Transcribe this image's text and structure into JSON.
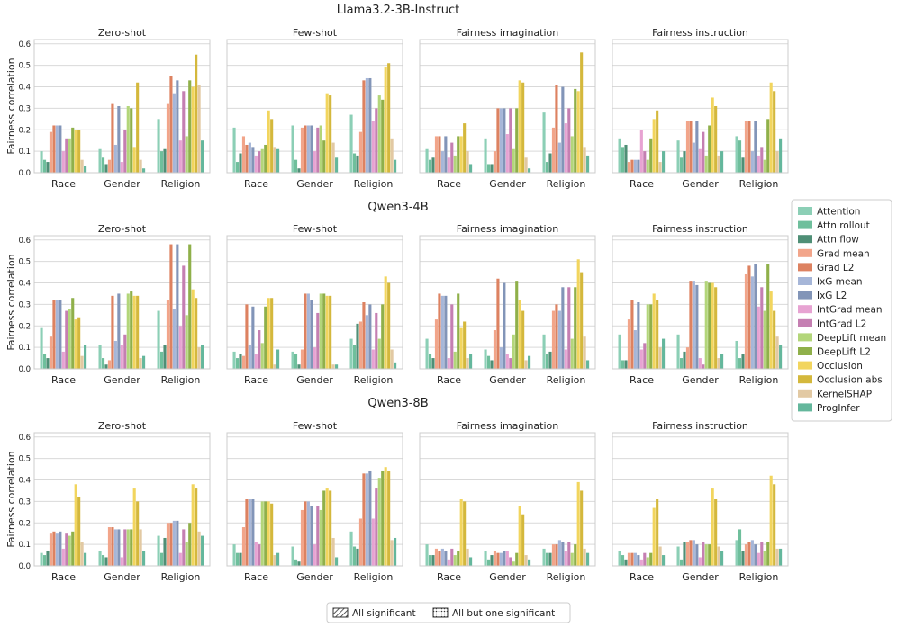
{
  "methods": [
    {
      "name": "Attention",
      "color": "#8ccfb6"
    },
    {
      "name": "Attn rollout",
      "color": "#6fbf9c"
    },
    {
      "name": "Attn flow",
      "color": "#4f8f76"
    },
    {
      "name": "Grad mean",
      "color": "#f2a58a"
    },
    {
      "name": "Grad L2",
      "color": "#dd8261"
    },
    {
      "name": "IxG mean",
      "color": "#a6b6d8"
    },
    {
      "name": "IxG L2",
      "color": "#8295b8"
    },
    {
      "name": "IntGrad mean",
      "color": "#e7a3d2"
    },
    {
      "name": "IntGrad L2",
      "color": "#c57fb2"
    },
    {
      "name": "DeepLift mean",
      "color": "#b3d67a"
    },
    {
      "name": "DeepLift L2",
      "color": "#8fb04a"
    },
    {
      "name": "Occlusion",
      "color": "#f2d55e"
    },
    {
      "name": "Occlusion abs",
      "color": "#d4b83c"
    },
    {
      "name": "KernelSHAP",
      "color": "#e2c9a3"
    },
    {
      "name": "ProgInfer",
      "color": "#64b79c"
    }
  ],
  "legend_patterns": [
    {
      "label": "All significant",
      "pattern": "diagonal-hatch"
    },
    {
      "label": "All but one significant",
      "pattern": "dots"
    }
  ],
  "chart_data": {
    "type": "bar",
    "ylabel": "Fairness correlation",
    "ylim": [
      0,
      0.62
    ],
    "yticks": [
      0.0,
      0.1,
      0.2,
      0.3,
      0.4,
      0.5,
      0.6
    ],
    "categories": [
      "Race",
      "Gender",
      "Religion"
    ],
    "grid": true,
    "legend_position": "right",
    "models": [
      {
        "name": "Llama3.2-3B-Instruct",
        "panels": [
          {
            "title": "Zero-shot",
            "values": [
              [
                0.1,
                0.06,
                0.05,
                0.19,
                0.22,
                0.22,
                0.22,
                0.1,
                0.16,
                0.16,
                0.21,
                0.2,
                0.2,
                0.06,
                0.03
              ],
              [
                0.11,
                0.07,
                0.04,
                0.06,
                0.32,
                0.13,
                0.31,
                0.05,
                0.2,
                0.31,
                0.3,
                0.12,
                0.42,
                0.06,
                0.02
              ],
              [
                0.25,
                0.1,
                0.11,
                0.32,
                0.45,
                0.37,
                0.43,
                0.15,
                0.38,
                0.17,
                0.43,
                0.4,
                0.55,
                0.41,
                0.15
              ]
            ]
          },
          {
            "title": "Few-shot",
            "values": [
              [
                0.21,
                0.05,
                0.09,
                0.17,
                0.13,
                0.14,
                0.12,
                0.08,
                0.1,
                0.11,
                0.13,
                0.29,
                0.25,
                0.12,
                0.11
              ],
              [
                0.22,
                0.06,
                0.02,
                0.21,
                0.22,
                0.22,
                0.22,
                0.1,
                0.21,
                0.22,
                0.15,
                0.37,
                0.36,
                0.14,
                0.07
              ],
              [
                0.27,
                0.09,
                0.08,
                0.19,
                0.43,
                0.44,
                0.44,
                0.24,
                0.3,
                0.36,
                0.34,
                0.49,
                0.51,
                0.16,
                0.06
              ]
            ]
          },
          {
            "title": "Fairness imagination",
            "values": [
              [
                0.11,
                0.06,
                0.07,
                0.17,
                0.17,
                0.1,
                0.17,
                0.07,
                0.14,
                0.08,
                0.17,
                0.17,
                0.23,
                0.1,
                0.04
              ],
              [
                0.16,
                0.04,
                0.04,
                0.1,
                0.3,
                0.3,
                0.3,
                0.18,
                0.3,
                0.11,
                0.3,
                0.43,
                0.42,
                0.07,
                0.02
              ],
              [
                0.28,
                0.05,
                0.09,
                0.21,
                0.41,
                0.14,
                0.4,
                0.23,
                0.3,
                0.17,
                0.39,
                0.38,
                0.56,
                0.12,
                0.08
              ]
            ]
          },
          {
            "title": "Fairness instruction",
            "values": [
              [
                0.16,
                0.12,
                0.13,
                0.05,
                0.06,
                0.06,
                0.06,
                0.2,
                0.1,
                0.06,
                0.16,
                0.25,
                0.29,
                0.05,
                0.1
              ],
              [
                0.15,
                0.07,
                0.1,
                0.24,
                0.24,
                0.14,
                0.24,
                0.11,
                0.19,
                0.08,
                0.22,
                0.35,
                0.31,
                0.08,
                0.1
              ],
              [
                0.17,
                0.15,
                0.07,
                0.24,
                0.24,
                0.1,
                0.24,
                0.08,
                0.12,
                0.06,
                0.25,
                0.42,
                0.38,
                0.1,
                0.16
              ]
            ]
          }
        ]
      },
      {
        "name": "Qwen3-4B",
        "panels": [
          {
            "title": "Zero-shot",
            "values": [
              [
                0.19,
                0.07,
                0.05,
                0.15,
                0.32,
                0.32,
                0.32,
                0.08,
                0.27,
                0.28,
                0.33,
                0.23,
                0.24,
                0.06,
                0.11
              ],
              [
                0.11,
                0.05,
                0.02,
                0.04,
                0.34,
                0.13,
                0.35,
                0.11,
                0.16,
                0.35,
                0.36,
                0.34,
                0.34,
                0.05,
                0.06
              ],
              [
                0.27,
                0.08,
                0.11,
                0.32,
                0.58,
                0.28,
                0.58,
                0.2,
                0.48,
                0.25,
                0.58,
                0.37,
                0.33,
                0.1,
                0.11
              ]
            ]
          },
          {
            "title": "Few-shot",
            "values": [
              [
                0.08,
                0.05,
                0.07,
                0.06,
                0.3,
                0.11,
                0.29,
                0.07,
                0.18,
                0.12,
                0.29,
                0.33,
                0.33,
                0.02,
                0.09
              ],
              [
                0.08,
                0.07,
                0.02,
                0.09,
                0.35,
                0.35,
                0.32,
                0.1,
                0.26,
                0.35,
                0.35,
                0.34,
                0.34,
                0.02,
                0.02
              ],
              [
                0.14,
                0.11,
                0.21,
                0.22,
                0.31,
                0.25,
                0.3,
                0.09,
                0.26,
                0.14,
                0.3,
                0.43,
                0.4,
                0.09,
                0.03
              ]
            ]
          },
          {
            "title": "Fairness imagination",
            "values": [
              [
                0.14,
                0.07,
                0.05,
                0.23,
                0.35,
                0.34,
                0.34,
                0.05,
                0.3,
                0.08,
                0.35,
                0.19,
                0.22,
                0.05,
                0.07
              ],
              [
                0.09,
                0.06,
                0.04,
                0.18,
                0.42,
                0.1,
                0.4,
                0.07,
                0.05,
                0.16,
                0.41,
                0.32,
                0.27,
                0.04,
                0.06
              ],
              [
                0.16,
                0.07,
                0.08,
                0.27,
                0.3,
                0.27,
                0.38,
                0.09,
                0.38,
                0.14,
                0.38,
                0.51,
                0.45,
                0.15,
                0.04
              ]
            ]
          },
          {
            "title": "Fairness instruction",
            "values": [
              [
                0.16,
                0.04,
                0.04,
                0.23,
                0.32,
                0.18,
                0.31,
                0.09,
                0.12,
                0.3,
                0.3,
                0.35,
                0.32,
                0.1,
                0.14
              ],
              [
                0.16,
                0.05,
                0.08,
                0.1,
                0.41,
                0.41,
                0.39,
                0.05,
                0.02,
                0.41,
                0.4,
                0.4,
                0.38,
                0.05,
                0.07
              ],
              [
                0.13,
                0.05,
                0.07,
                0.44,
                0.48,
                0.43,
                0.49,
                0.29,
                0.38,
                0.27,
                0.49,
                0.36,
                0.27,
                0.15,
                0.11
              ]
            ]
          }
        ]
      },
      {
        "name": "Qwen3-8B",
        "panels": [
          {
            "title": "Zero-shot",
            "values": [
              [
                0.06,
                0.05,
                0.07,
                0.15,
                0.16,
                0.15,
                0.16,
                0.08,
                0.15,
                0.14,
                0.16,
                0.38,
                0.32,
                0.11,
                0.06
              ],
              [
                0.07,
                0.05,
                0.04,
                0.18,
                0.18,
                0.17,
                0.17,
                0.04,
                0.17,
                0.17,
                0.17,
                0.36,
                0.3,
                0.17,
                0.07
              ],
              [
                0.14,
                0.06,
                0.13,
                0.2,
                0.2,
                0.21,
                0.21,
                0.06,
                0.17,
                0.11,
                0.2,
                0.38,
                0.36,
                0.16,
                0.14
              ]
            ]
          },
          {
            "title": "Few-shot",
            "values": [
              [
                0.1,
                0.06,
                0.06,
                0.18,
                0.31,
                0.31,
                0.31,
                0.11,
                0.1,
                0.3,
                0.3,
                0.3,
                0.29,
                0.05,
                0.06
              ],
              [
                0.09,
                0.03,
                0.02,
                0.26,
                0.3,
                0.3,
                0.28,
                0.1,
                0.28,
                0.26,
                0.35,
                0.36,
                0.35,
                0.13,
                0.04
              ],
              [
                0.16,
                0.09,
                0.08,
                0.22,
                0.43,
                0.43,
                0.44,
                0.22,
                0.36,
                0.41,
                0.44,
                0.46,
                0.44,
                0.12,
                0.13
              ]
            ]
          },
          {
            "title": "Fairness imagination",
            "values": [
              [
                0.1,
                0.05,
                0.05,
                0.08,
                0.07,
                0.08,
                0.07,
                0.03,
                0.08,
                0.05,
                0.07,
                0.31,
                0.3,
                0.08,
                0.04
              ],
              [
                0.07,
                0.03,
                0.05,
                0.07,
                0.06,
                0.06,
                0.07,
                0.07,
                0.04,
                0.02,
                0.06,
                0.28,
                0.24,
                0.05,
                0.03
              ],
              [
                0.08,
                0.06,
                0.06,
                0.1,
                0.1,
                0.12,
                0.11,
                0.07,
                0.11,
                0.06,
                0.1,
                0.39,
                0.35,
                0.08,
                0.06
              ]
            ]
          },
          {
            "title": "Fairness instruction",
            "values": [
              [
                0.07,
                0.05,
                0.03,
                0.06,
                0.06,
                0.06,
                0.05,
                0.03,
                0.06,
                0.04,
                0.06,
                0.27,
                0.31,
                0.09,
                0.05
              ],
              [
                0.09,
                0.03,
                0.11,
                0.11,
                0.12,
                0.12,
                0.1,
                0.04,
                0.11,
                0.1,
                0.1,
                0.36,
                0.31,
                0.09,
                0.07
              ],
              [
                0.12,
                0.17,
                0.07,
                0.1,
                0.11,
                0.12,
                0.1,
                0.06,
                0.11,
                0.07,
                0.11,
                0.42,
                0.38,
                0.08,
                0.08
              ]
            ]
          }
        ]
      }
    ]
  }
}
